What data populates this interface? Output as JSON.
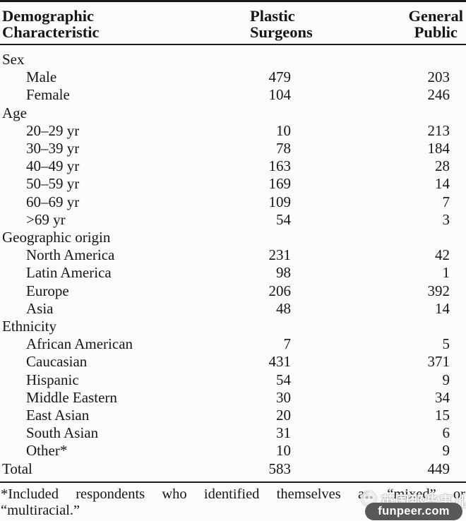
{
  "table": {
    "columns": [
      {
        "line1": "Demographic",
        "line2": "Characteristic"
      },
      {
        "line1": "Plastic",
        "line2": "Surgeons"
      },
      {
        "line1": "General",
        "line2": "Public"
      }
    ],
    "rows": [
      {
        "type": "section",
        "label": "Sex",
        "ps": "",
        "gp": ""
      },
      {
        "type": "item",
        "label": "Male",
        "ps": "479",
        "gp": "203"
      },
      {
        "type": "item",
        "label": "Female",
        "ps": "104",
        "gp": "246"
      },
      {
        "type": "section",
        "label": "Age",
        "ps": "",
        "gp": ""
      },
      {
        "type": "item",
        "label": "20–29 yr",
        "ps": "10",
        "gp": "213"
      },
      {
        "type": "item",
        "label": "30–39 yr",
        "ps": "78",
        "gp": "184"
      },
      {
        "type": "item",
        "label": "40–49 yr",
        "ps": "163",
        "gp": "28"
      },
      {
        "type": "item",
        "label": "50–59 yr",
        "ps": "169",
        "gp": "14"
      },
      {
        "type": "item",
        "label": "60–69 yr",
        "ps": "109",
        "gp": "7"
      },
      {
        "type": "item",
        "label": ">69 yr",
        "ps": "54",
        "gp": "3"
      },
      {
        "type": "section",
        "label": "Geographic origin",
        "ps": "",
        "gp": ""
      },
      {
        "type": "item",
        "label": "North America",
        "ps": "231",
        "gp": "42"
      },
      {
        "type": "item",
        "label": "Latin America",
        "ps": "98",
        "gp": "1"
      },
      {
        "type": "item",
        "label": "Europe",
        "ps": "206",
        "gp": "392"
      },
      {
        "type": "item",
        "label": "Asia",
        "ps": "48",
        "gp": "14"
      },
      {
        "type": "section",
        "label": "Ethnicity",
        "ps": "",
        "gp": ""
      },
      {
        "type": "item",
        "label": "African American",
        "ps": "7",
        "gp": "5"
      },
      {
        "type": "item",
        "label": "Caucasian",
        "ps": "431",
        "gp": "371"
      },
      {
        "type": "item",
        "label": "Hispanic",
        "ps": "54",
        "gp": "9"
      },
      {
        "type": "item",
        "label": "Middle Eastern",
        "ps": "30",
        "gp": "34"
      },
      {
        "type": "item",
        "label": "East Asian",
        "ps": "20",
        "gp": "15"
      },
      {
        "type": "item",
        "label": "South Asian",
        "ps": "31",
        "gp": "6"
      },
      {
        "type": "item",
        "label": "Other*",
        "ps": "10",
        "gp": "9"
      },
      {
        "type": "total",
        "label": "Total",
        "ps": "583",
        "gp": "449"
      }
    ],
    "footnote_line1": "*Included respondents who identified themselves as “mixed” or",
    "footnote_line2": "“multiracial.”"
  },
  "watermark": {
    "brand_text": "英国那些事儿",
    "site_label": "funpeer.com",
    "box_color": "#58585a"
  }
}
